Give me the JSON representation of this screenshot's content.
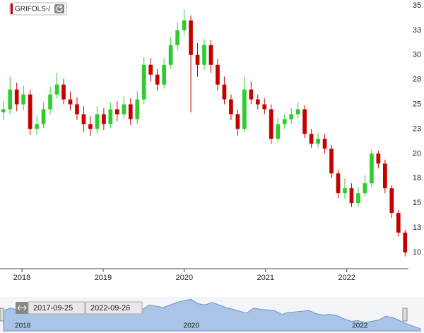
{
  "chart_data": {
    "type": "candlestick",
    "title": "GRIFOLS-/",
    "xlim": [
      2017.73,
      2022.76
    ],
    "xticks": [
      2018,
      2019,
      2020,
      2021,
      2022
    ],
    "ylim": [
      8.35,
      35.57
    ],
    "yticks": [
      35,
      {
        "value": 32.5,
        "label": "33"
      },
      30,
      {
        "value": 27.5,
        "label": "28"
      },
      25,
      {
        "value": 22.5,
        "label": "23"
      },
      20,
      {
        "value": 17.5,
        "label": "18"
      },
      15,
      {
        "value": 12.5,
        "label": "13"
      },
      10
    ],
    "grid": false,
    "up_color": "#2ecc2e",
    "down_color": "#c40000",
    "open": [
      24.2,
      24.5,
      26.5,
      25.0,
      26.0,
      22.5,
      23.0,
      24.5,
      26.0,
      27.0,
      25.5,
      25.0,
      24.0,
      23.0,
      22.5,
      24.0,
      23.0,
      24.5,
      24.0,
      25.0,
      23.5,
      25.5,
      29.0,
      28.0,
      27.0,
      29.0,
      31.0,
      32.5,
      33.5,
      30.0,
      29.0,
      31.0,
      29.0,
      27.0,
      25.5,
      24.0,
      22.5,
      26.5,
      25.5,
      25.0,
      24.5,
      21.5,
      23.0,
      23.5,
      24.0,
      24.5,
      22.0,
      21.0,
      21.5,
      20.5,
      18.0,
      16.0,
      16.5,
      15.0,
      16.0,
      17.0,
      20.0,
      19.0,
      16.5,
      14.0,
      12.0
    ],
    "high": [
      25.3,
      27.8,
      27.2,
      26.9,
      26.5,
      23.8,
      25.2,
      26.8,
      28.2,
      27.6,
      26.3,
      25.7,
      24.8,
      23.8,
      24.8,
      24.6,
      25.2,
      25.3,
      25.8,
      25.6,
      26.3,
      29.8,
      29.7,
      28.6,
      29.6,
      31.8,
      33.3,
      34.6,
      34.0,
      31.2,
      31.6,
      31.5,
      29.6,
      27.8,
      26.0,
      24.5,
      27.8,
      27.3,
      26.0,
      25.6,
      25.0,
      23.6,
      24.0,
      24.6,
      25.2,
      24.9,
      22.5,
      22.1,
      22.0,
      20.9,
      18.4,
      17.5,
      17.0,
      16.6,
      17.8,
      20.4,
      20.3,
      19.4,
      16.8,
      14.3,
      12.3
    ],
    "low": [
      23.4,
      24.0,
      24.3,
      24.4,
      21.9,
      21.9,
      22.6,
      24.0,
      25.6,
      25.0,
      24.4,
      23.4,
      22.2,
      21.8,
      22.0,
      22.4,
      22.6,
      23.3,
      23.5,
      22.9,
      23.0,
      25.0,
      27.3,
      26.4,
      26.6,
      28.6,
      30.5,
      32.0,
      24.2,
      27.8,
      28.5,
      28.2,
      26.4,
      25.0,
      23.4,
      21.8,
      22.2,
      25.0,
      24.5,
      24.0,
      21.0,
      21.2,
      22.5,
      23.0,
      23.6,
      21.6,
      20.6,
      20.6,
      20.0,
      17.5,
      15.5,
      15.4,
      14.6,
      14.6,
      15.6,
      16.6,
      18.5,
      16.0,
      13.5,
      11.6,
      9.6
    ],
    "close": [
      24.5,
      26.5,
      25.0,
      26.0,
      22.5,
      23.0,
      24.5,
      26.0,
      27.0,
      25.5,
      25.0,
      24.0,
      23.0,
      22.5,
      24.0,
      23.0,
      24.5,
      24.0,
      25.0,
      23.5,
      25.5,
      29.0,
      28.0,
      27.0,
      29.0,
      31.0,
      32.5,
      33.5,
      30.0,
      29.0,
      31.0,
      29.0,
      27.0,
      25.5,
      24.0,
      22.5,
      26.5,
      25.5,
      25.0,
      24.5,
      21.5,
      23.0,
      23.5,
      24.0,
      24.5,
      22.0,
      21.0,
      21.5,
      20.5,
      18.0,
      16.0,
      16.5,
      15.0,
      16.0,
      17.0,
      20.0,
      19.0,
      16.5,
      14.0,
      12.0,
      10.0
    ],
    "navigator": {
      "start": "2017-09-25",
      "end": "2022-09-26",
      "xticks": [
        2018,
        2020,
        2022
      ],
      "color": "#a9c4e6"
    }
  }
}
